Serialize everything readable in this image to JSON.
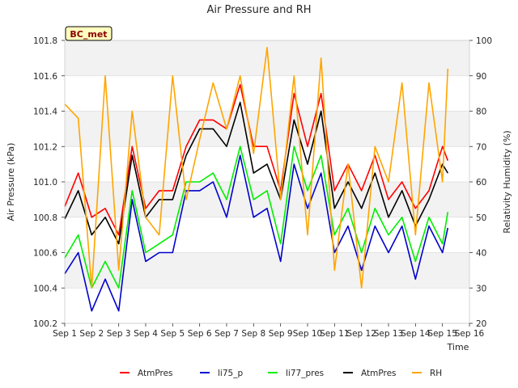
{
  "chart_data": {
    "type": "line",
    "title": "Air Pressure and RH",
    "xlabel": "Time",
    "ylabel": "Air Pressure (kPa)",
    "y2label": "Relativity Humidity (%)",
    "site_label": "BC_met",
    "xlim": [
      1,
      16
    ],
    "ylim": [
      100.2,
      101.8
    ],
    "y2lim": [
      20,
      100
    ],
    "x_ticks": [
      "Sep 1",
      "Sep 2",
      "Sep 3",
      "Sep 4",
      "Sep 5",
      "Sep 6",
      "Sep 7",
      "Sep 8",
      "Sep 9",
      "Sep 10",
      "Sep 11",
      "Sep 12",
      "Sep 13",
      "Sep 14",
      "Sep 15",
      "Sep 16"
    ],
    "y_ticks": [
      "100.2",
      "100.4",
      "100.6",
      "100.8",
      "101.0",
      "101.2",
      "101.4",
      "101.6",
      "101.8"
    ],
    "y2_ticks": [
      "20",
      "30",
      "40",
      "50",
      "60",
      "70",
      "80",
      "90",
      "100"
    ],
    "grid": true,
    "legend_position": "bottom",
    "x": [
      1.0,
      1.5,
      2.0,
      2.5,
      3.0,
      3.5,
      4.0,
      4.5,
      5.0,
      5.5,
      6.0,
      6.5,
      7.0,
      7.5,
      8.0,
      8.5,
      9.0,
      9.5,
      10.0,
      10.5,
      11.0,
      11.5,
      12.0,
      12.5,
      13.0,
      13.5,
      14.0,
      14.5,
      15.0,
      15.2
    ],
    "series": [
      {
        "name": "AtmPres",
        "color": "#ff0000",
        "axis": "left",
        "values": [
          100.86,
          101.05,
          100.8,
          100.85,
          100.7,
          101.2,
          100.85,
          100.95,
          100.95,
          101.2,
          101.35,
          101.35,
          101.3,
          101.55,
          101.2,
          101.2,
          100.95,
          101.5,
          101.2,
          101.5,
          100.95,
          101.1,
          100.95,
          101.15,
          100.9,
          101.0,
          100.85,
          100.95,
          101.2,
          101.12
        ]
      },
      {
        "name": "li75_p",
        "color": "#0000cc",
        "axis": "left",
        "values": [
          100.48,
          100.6,
          100.27,
          100.45,
          100.27,
          100.9,
          100.55,
          100.6,
          100.6,
          100.95,
          100.95,
          101.0,
          100.8,
          101.15,
          100.8,
          100.85,
          100.55,
          101.1,
          100.85,
          101.05,
          100.6,
          100.75,
          100.5,
          100.75,
          100.6,
          100.75,
          100.45,
          100.75,
          100.6,
          100.74
        ]
      },
      {
        "name": "li77_pres",
        "color": "#00ee00",
        "axis": "left",
        "values": [
          100.57,
          100.7,
          100.4,
          100.55,
          100.4,
          100.95,
          100.6,
          100.65,
          100.7,
          101.0,
          101.0,
          101.05,
          100.9,
          101.2,
          100.9,
          100.95,
          100.65,
          101.2,
          100.95,
          101.15,
          100.7,
          100.85,
          100.6,
          100.85,
          100.7,
          100.8,
          100.55,
          100.8,
          100.65,
          100.83
        ]
      },
      {
        "name": "AtmPres",
        "color": "#000000",
        "axis": "left",
        "values": [
          100.79,
          100.95,
          100.7,
          100.8,
          100.65,
          101.15,
          100.8,
          100.9,
          100.9,
          101.15,
          101.3,
          101.3,
          101.2,
          101.45,
          101.05,
          101.1,
          100.9,
          101.35,
          101.1,
          101.4,
          100.85,
          101.0,
          100.85,
          101.05,
          100.8,
          100.95,
          100.75,
          100.9,
          101.1,
          101.05
        ]
      },
      {
        "name": "RH",
        "color": "#ffa500",
        "axis": "right",
        "values": [
          82,
          78,
          30,
          90,
          35,
          80,
          50,
          45,
          90,
          55,
          72,
          88,
          75,
          90,
          68,
          98,
          55,
          90,
          45,
          95,
          35,
          65,
          30,
          70,
          60,
          88,
          45,
          88,
          60,
          92
        ]
      }
    ]
  }
}
